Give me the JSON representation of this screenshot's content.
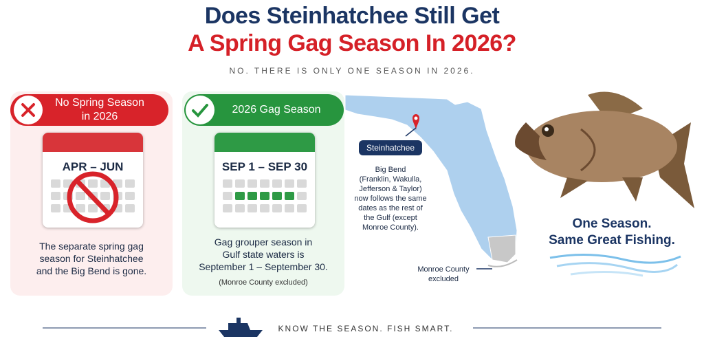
{
  "header": {
    "title_line1": "Does Steinhatchee Still Get",
    "title_line2": "A Spring Gag Season In 2026?",
    "subtitle": "NO. THERE IS ONLY ONE SEASON IN 2026."
  },
  "cards": [
    {
      "badge": [
        "No Spring Season",
        "in 2026"
      ],
      "calendar": "APR – JUN",
      "text": [
        "The separate spring gag",
        "season for Steinhatchee",
        "and the Big Bend is gone."
      ]
    },
    {
      "badge": [
        "2026 Gag Season"
      ],
      "calendar": "SEP 1 – SEP 30",
      "text": [
        "Gag grouper season in",
        "Gulf state waters is",
        "September 1 – September 30."
      ],
      "note": "(Monroe County excluded)"
    }
  ],
  "map": {
    "pin_label": "Steinhatchee",
    "note": [
      "Big Bend",
      "(Franklin, Wakulla,",
      "Jefferson & Taylor)",
      "now follows the same",
      "dates as the rest of",
      "the Gulf (except",
      "Monroe County)."
    ],
    "monroe": [
      "Monroe County",
      "excluded"
    ]
  },
  "fish": {
    "tagline": [
      "One Season.",
      "Same Great Fishing."
    ]
  },
  "footer": {
    "text": "KNOW THE SEASON. FISH SMART."
  }
}
